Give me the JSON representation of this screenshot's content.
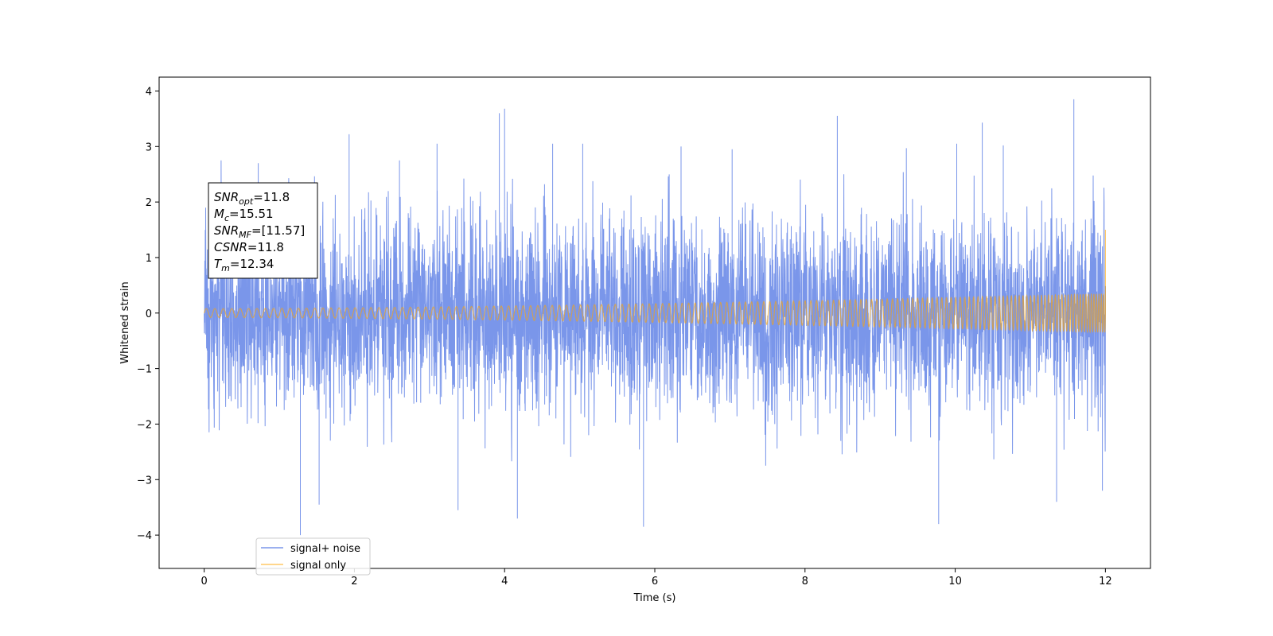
{
  "chart_data": {
    "type": "line",
    "title": "",
    "xlabel": "Time (s)",
    "ylabel": "Whitened strain",
    "xlim": [
      -0.6,
      12.6
    ],
    "ylim": [
      -4.6,
      4.25
    ],
    "xticks": [
      0,
      2,
      4,
      6,
      8,
      10,
      12
    ],
    "xtick_labels": [
      "0",
      "2",
      "4",
      "6",
      "8",
      "10",
      "12"
    ],
    "yticks": [
      -4,
      -3,
      -2,
      -1,
      0,
      1,
      2,
      3,
      4
    ],
    "ytick_labels": [
      "−4",
      "−3",
      "−2",
      "−1",
      "0",
      "1",
      "2",
      "3",
      "4"
    ],
    "grid": false,
    "legend_position": "bottom-left",
    "annotation": {
      "position": "upper-left",
      "lines": [
        {
          "symbol": "SNR",
          "sub": "opt",
          "value": "=11.8"
        },
        {
          "symbol": "M",
          "sub": "c",
          "value": "=15.51"
        },
        {
          "symbol": "SNR",
          "sub": "MF",
          "value": "=[11.57]"
        },
        {
          "symbol": "CSNR",
          "sub": "",
          "value": "=11.8"
        },
        {
          "symbol": "T",
          "sub": "m",
          "value": "=12.34"
        }
      ]
    },
    "series": [
      {
        "name": "signal+ noise",
        "color": "#4169e1",
        "opacity": 0.7,
        "description": "whitened noise plus signal, approx. unit-variance",
        "x_range": [
          0,
          12
        ],
        "typical_amplitude": 1.0,
        "peaks": [
          {
            "x": 0.1,
            "y": 2.35
          },
          {
            "x": 0.72,
            "y": 2.7
          },
          {
            "x": 1.28,
            "y": -4.0
          },
          {
            "x": 1.53,
            "y": -3.45
          },
          {
            "x": 1.93,
            "y": 3.22
          },
          {
            "x": 2.6,
            "y": 2.75
          },
          {
            "x": 3.1,
            "y": 3.05
          },
          {
            "x": 3.38,
            "y": -3.55
          },
          {
            "x": 3.93,
            "y": 3.6
          },
          {
            "x": 4.0,
            "y": 3.68
          },
          {
            "x": 4.17,
            "y": -3.7
          },
          {
            "x": 4.64,
            "y": 3.05
          },
          {
            "x": 5.04,
            "y": 3.05
          },
          {
            "x": 5.85,
            "y": -3.85
          },
          {
            "x": 6.35,
            "y": 3.0
          },
          {
            "x": 7.03,
            "y": 2.95
          },
          {
            "x": 8.43,
            "y": 3.55
          },
          {
            "x": 9.35,
            "y": 2.97
          },
          {
            "x": 9.78,
            "y": -3.8
          },
          {
            "x": 10.02,
            "y": 3.05
          },
          {
            "x": 10.36,
            "y": 3.43
          },
          {
            "x": 10.64,
            "y": 3.02
          },
          {
            "x": 11.35,
            "y": -3.4
          },
          {
            "x": 11.58,
            "y": 3.85
          },
          {
            "x": 11.96,
            "y": -3.2
          }
        ]
      },
      {
        "name": "signal only",
        "color": "#ffa500",
        "opacity": 0.6,
        "description": "inspiral chirp, amplitude and frequency increase with time",
        "x_range": [
          0,
          12
        ],
        "amplitude_start": 0.08,
        "amplitude_end": 0.35,
        "cycles_in_range": 155,
        "merger_time": 12.0
      }
    ]
  }
}
